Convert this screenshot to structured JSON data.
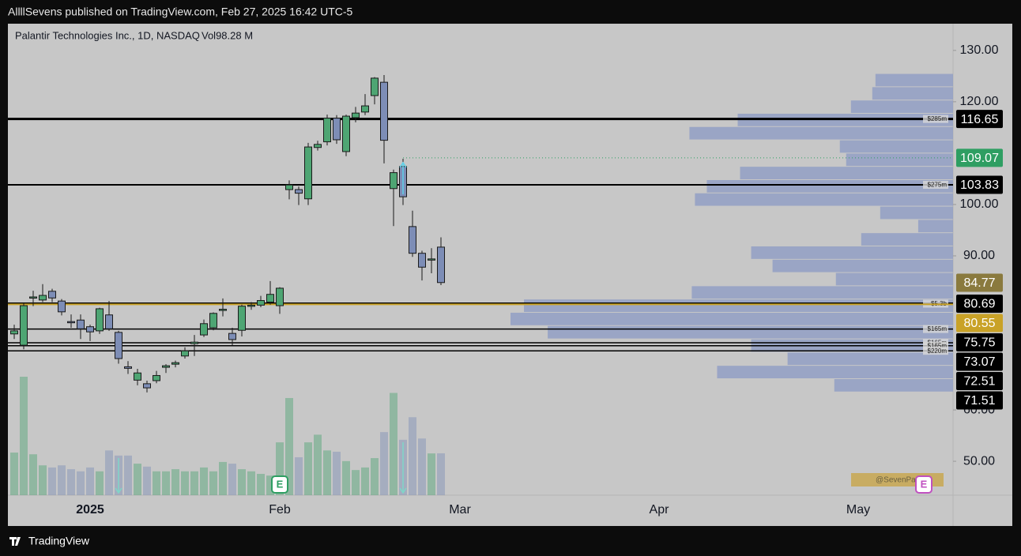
{
  "header": {
    "text": "AllllSevens published on TradingView.com, Feb 27, 2025 16:42 UTC-5"
  },
  "footer": {
    "brand": "TradingView"
  },
  "chart_data": {
    "type": "candlestick",
    "title": "Palantir Technologies Inc., 1D, NASDAQ",
    "volume_legend": "Vol98.28 M",
    "categories": [
      null,
      null,
      null,
      null,
      null,
      null,
      null,
      null,
      "2025",
      null,
      null,
      null,
      null,
      null,
      null,
      null,
      null,
      null,
      null,
      null,
      null,
      null,
      null,
      null,
      null,
      null,
      null,
      null,
      "Feb",
      null,
      null,
      null,
      null,
      null,
      null,
      null,
      null,
      null,
      null,
      null,
      null,
      null,
      null,
      null,
      null,
      null,
      null,
      "Mar",
      null,
      null,
      null,
      null,
      null,
      null,
      null,
      null,
      null,
      null,
      null,
      null,
      null,
      null,
      null,
      null,
      null,
      null,
      null,
      null,
      "Apr",
      null,
      null,
      null,
      null,
      null,
      null,
      null,
      null,
      null,
      null,
      null,
      null,
      null,
      null,
      null,
      null,
      null,
      null,
      null,
      null,
      "May",
      null,
      null,
      null,
      null,
      null,
      null,
      null,
      null,
      null,
      null
    ],
    "open": [
      74.8,
      72.6,
      81.8,
      81.4,
      83.1,
      81.2,
      77.2,
      77.5,
      76.2,
      75.4,
      78.5,
      75.1,
      68.4,
      65.8,
      65.1,
      65.7,
      68.3,
      68.9,
      70.5,
      72.9,
      74.6,
      76.0,
      79.4,
      74.9,
      75.5,
      80.2,
      80.4,
      81.0,
      80.3,
      102.9,
      102.9,
      101.1,
      111.1,
      112.2,
      116.8,
      110.3,
      116.9,
      118.0,
      121.2,
      123.8,
      103.1,
      107.4,
      95.7,
      90.5,
      89.3,
      91.7,
      null,
      null,
      null,
      null,
      null,
      null,
      null,
      null,
      null,
      null,
      null,
      null,
      null,
      null,
      null,
      null,
      null,
      null,
      null,
      null,
      null,
      null,
      null,
      null,
      null,
      null,
      null,
      null,
      null,
      null,
      null,
      null,
      null,
      null,
      null,
      null,
      null,
      null,
      null,
      null,
      null,
      null,
      null,
      null,
      null,
      null,
      null,
      null,
      null,
      null,
      null,
      null,
      null,
      null
    ],
    "high": [
      76.6,
      80.8,
      83.2,
      84.5,
      83.6,
      81.6,
      78.6,
      78.6,
      76.6,
      79.9,
      81.2,
      75.4,
      69.5,
      68.0,
      65.7,
      67.6,
      68.9,
      69.6,
      72.2,
      74.6,
      77.6,
      79.0,
      81.7,
      76.0,
      80.5,
      81.0,
      82.2,
      85.1,
      83.9,
      104.7,
      103.5,
      112.0,
      112.4,
      117.5,
      117.4,
      117.5,
      119.0,
      121.5,
      124.8,
      125.2,
      106.8,
      108.9,
      98.8,
      91.0,
      91.5,
      93.6,
      null,
      null,
      null,
      null,
      null,
      null,
      null,
      null,
      null,
      null,
      null,
      null,
      null,
      null,
      null,
      null,
      null,
      null,
      null,
      null,
      null,
      null,
      null,
      null,
      null,
      null,
      null,
      null,
      null,
      null,
      null,
      null,
      null,
      null,
      null,
      null,
      null,
      null,
      null,
      null,
      null,
      null,
      null,
      null,
      null,
      null,
      null,
      null,
      null,
      null,
      null,
      null,
      null,
      null
    ],
    "low": [
      73.8,
      71.8,
      80.2,
      81.0,
      81.0,
      78.4,
      76.0,
      73.8,
      73.4,
      74.8,
      75.4,
      69.0,
      67.0,
      64.8,
      63.4,
      65.2,
      67.2,
      68.3,
      70.0,
      70.5,
      74.2,
      75.5,
      78.2,
      72.6,
      74.3,
      79.5,
      80.0,
      80.5,
      78.7,
      101.0,
      99.9,
      99.9,
      110.5,
      111.5,
      111.8,
      109.4,
      116.0,
      117.4,
      119.5,
      108.0,
      95.8,
      99.9,
      89.8,
      85.2,
      86.6,
      84.3,
      null,
      null,
      null,
      null,
      null,
      null,
      null,
      null,
      null,
      null,
      null,
      null,
      null,
      null,
      null,
      null,
      null,
      null,
      null,
      null,
      null,
      null,
      null,
      null,
      null,
      null,
      null,
      null,
      null,
      null,
      null,
      null,
      null,
      null,
      null,
      null,
      null,
      null,
      null,
      null,
      null,
      null,
      null,
      null,
      null,
      null,
      null,
      null,
      null,
      null,
      null,
      null,
      null,
      null
    ],
    "close": [
      75.4,
      80.3,
      82.0,
      82.3,
      81.8,
      79.1,
      77.0,
      75.8,
      75.2,
      79.7,
      75.8,
      70.0,
      68.1,
      67.2,
      64.3,
      66.7,
      68.6,
      69.2,
      71.5,
      73.2,
      76.8,
      78.8,
      79.6,
      73.7,
      80.2,
      80.4,
      81.3,
      82.5,
      83.7,
      103.8,
      102.2,
      111.2,
      111.7,
      116.8,
      112.6,
      117.2,
      117.8,
      119.2,
      124.6,
      112.5,
      106.2,
      101.5,
      90.5,
      87.8,
      89.4,
      84.8,
      null,
      null,
      null,
      null,
      null,
      null,
      null,
      null,
      null,
      null,
      null,
      null,
      null,
      null,
      null,
      null,
      null,
      null,
      null,
      null,
      null,
      null,
      null,
      null,
      null,
      null,
      null,
      null,
      null,
      null,
      null,
      null,
      null,
      null,
      null,
      null,
      null,
      null,
      null,
      null,
      null,
      null,
      null,
      null,
      null,
      null,
      null,
      null,
      null,
      null,
      null,
      null,
      null,
      null
    ],
    "volume": [
      100,
      278,
      96,
      70,
      65,
      70,
      61,
      56,
      65,
      56,
      105,
      93,
      93,
      74,
      67,
      56,
      56,
      61,
      56,
      56,
      65,
      56,
      78,
      74,
      61,
      56,
      50,
      46,
      124,
      228,
      89,
      124,
      142,
      105,
      102,
      80,
      59,
      65,
      87,
      148,
      240,
      130,
      183,
      133,
      98,
      98.28,
      null,
      null,
      null,
      null,
      null,
      null,
      null,
      null,
      null,
      null,
      null,
      null,
      null,
      null,
      null,
      null,
      null,
      null,
      null,
      null,
      null,
      null,
      null,
      null,
      null,
      null,
      null,
      null,
      null,
      null,
      null,
      null,
      null,
      null,
      null,
      null,
      null,
      null,
      null,
      null,
      null,
      null,
      null,
      null,
      null,
      null,
      null,
      null,
      null,
      null,
      null,
      null,
      null,
      null
    ],
    "up_color": "#4ea573",
    "down_color": "#7d8db6",
    "ylim": [
      43.4,
      135.2
    ],
    "yticks": [
      {
        "value": 50,
        "label": "50.00"
      },
      {
        "value": 60,
        "label": "60.00"
      },
      {
        "value": 90,
        "label": "90.00"
      },
      {
        "value": 100,
        "label": "100.00"
      },
      {
        "value": 120,
        "label": "120.00"
      },
      {
        "value": 130,
        "label": "130.00"
      }
    ],
    "levels": [
      {
        "value": 116.65,
        "color": "#000000",
        "style": "thick",
        "label_bg": "#000000",
        "tag": "$285m"
      },
      {
        "value": 109.07,
        "color": "#2e9e62",
        "style": "dotted",
        "label_bg": "#2e9e62"
      },
      {
        "value": 103.83,
        "color": "#000000",
        "style": "medium",
        "label_bg": "#000000",
        "tag": "$275m"
      },
      {
        "value": 84.77,
        "color": "#8a7a3e",
        "style": "none",
        "label_bg": "#8a7a3e"
      },
      {
        "value": 80.69,
        "color": "#000000",
        "style": "thick",
        "label_bg": "#000000",
        "tag": "$5.3b"
      },
      {
        "value": 80.55,
        "color": "#c9a227",
        "style": "medium",
        "label_bg": "#c9a227"
      },
      {
        "value": 75.75,
        "color": "#000000",
        "style": "thin",
        "label_bg": "#000000",
        "tag": "$165m"
      },
      {
        "value": 73.07,
        "color": "#000000",
        "style": "thin",
        "label_bg": "#000000",
        "tag": "$165m"
      },
      {
        "value": 72.51,
        "color": "#000000",
        "style": "thin",
        "label_bg": "#000000",
        "tag": "$165m"
      },
      {
        "value": 71.51,
        "color": "#000000",
        "style": "thin",
        "label_bg": "#000000",
        "tag": "$220m"
      }
    ],
    "volume_profile": {
      "color": "#8e9cc4",
      "bins": [
        63.5,
        66.08,
        68.67,
        71.25,
        73.83,
        76.42,
        79.0,
        81.58,
        84.17,
        86.75,
        89.33,
        91.92,
        94.5,
        97.08,
        99.67,
        102.25,
        104.83,
        107.42,
        110.0,
        112.58,
        115.17,
        117.75,
        120.33,
        122.92,
        125.5
      ],
      "values": [
        150,
        298,
        209,
        255,
        512,
        559,
        542,
        330,
        148,
        228,
        255,
        116,
        44,
        92,
        326,
        311,
        269,
        135,
        143,
        333,
        272,
        129,
        102,
        98
      ]
    },
    "earnings_label": "E",
    "watermark": "@SevenPar"
  }
}
